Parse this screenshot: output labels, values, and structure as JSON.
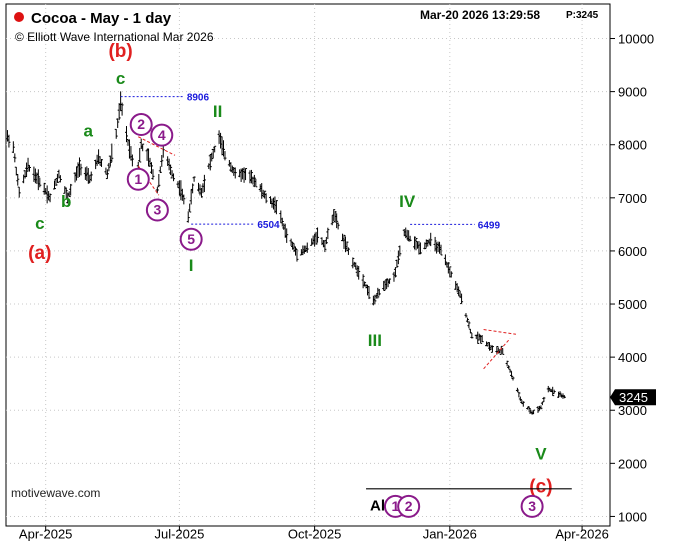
{
  "header": {
    "title": "Cocoa - May - 1 day",
    "copyright": "© Elliott Wave International Mar 2026",
    "timestamp": "Mar-20 2026  13:29:58",
    "price_tag": "P:3245",
    "watermark": "motivewave.com",
    "title_dot_color": "#dd1111"
  },
  "chart_data": {
    "type": "ohlc",
    "xlabel": "",
    "ylabel": "",
    "ylim": [
      820,
      10650
    ],
    "x_range": [
      "2025-03-05",
      "2026-04-20"
    ],
    "y_ticks": [
      1000,
      2000,
      3000,
      4000,
      5000,
      6000,
      7000,
      8000,
      9000,
      10000
    ],
    "x_ticks": [
      {
        "label": "Apr-2025",
        "date": "2025-04-01"
      },
      {
        "label": "Jul-2025",
        "date": "2025-07-01"
      },
      {
        "label": "Oct-2025",
        "date": "2025-10-01"
      },
      {
        "label": "Jan-2026",
        "date": "2026-01-01"
      },
      {
        "label": "Apr-2026",
        "date": "2026-04-01"
      }
    ],
    "price_anchors": [
      [
        "2025-03-06",
        8150
      ],
      [
        "2025-03-10",
        7950
      ],
      [
        "2025-03-14",
        7100
      ],
      [
        "2025-03-20",
        7600
      ],
      [
        "2025-03-28",
        7300
      ],
      [
        "2025-04-04",
        7000
      ],
      [
        "2025-04-10",
        7450
      ],
      [
        "2025-04-16",
        7000
      ],
      [
        "2025-04-24",
        7600
      ],
      [
        "2025-05-01",
        7350
      ],
      [
        "2025-05-07",
        7750
      ],
      [
        "2025-05-13",
        7450
      ],
      [
        "2025-05-19",
        8200
      ],
      [
        "2025-05-22",
        8800
      ],
      [
        "2025-05-27",
        8050
      ],
      [
        "2025-06-02",
        7400
      ],
      [
        "2025-06-05",
        8000
      ],
      [
        "2025-06-10",
        7750
      ],
      [
        "2025-06-16",
        7150
      ],
      [
        "2025-06-20",
        7900
      ],
      [
        "2025-06-26",
        7450
      ],
      [
        "2025-07-02",
        7150
      ],
      [
        "2025-07-07",
        6650
      ],
      [
        "2025-07-11",
        7350
      ],
      [
        "2025-07-16",
        7100
      ],
      [
        "2025-07-21",
        7600
      ],
      [
        "2025-07-28",
        8150
      ],
      [
        "2025-08-01",
        7800
      ],
      [
        "2025-08-08",
        7450
      ],
      [
        "2025-08-15",
        7450
      ],
      [
        "2025-08-22",
        7300
      ],
      [
        "2025-08-29",
        7000
      ],
      [
        "2025-09-05",
        6850
      ],
      [
        "2025-09-12",
        6300
      ],
      [
        "2025-09-19",
        5950
      ],
      [
        "2025-09-26",
        6050
      ],
      [
        "2025-10-03",
        6300
      ],
      [
        "2025-10-08",
        6100
      ],
      [
        "2025-10-14",
        6700
      ],
      [
        "2025-10-20",
        6250
      ],
      [
        "2025-10-27",
        5800
      ],
      [
        "2025-11-03",
        5450
      ],
      [
        "2025-11-10",
        5050
      ],
      [
        "2025-11-17",
        5350
      ],
      [
        "2025-11-24",
        5500
      ],
      [
        "2025-12-01",
        6350
      ],
      [
        "2025-12-08",
        6150
      ],
      [
        "2025-12-12",
        6050
      ],
      [
        "2025-12-19",
        6200
      ],
      [
        "2025-12-26",
        6000
      ],
      [
        "2026-01-02",
        5550
      ],
      [
        "2026-01-09",
        5100
      ],
      [
        "2026-01-16",
        4400
      ],
      [
        "2026-01-23",
        4350
      ],
      [
        "2026-01-30",
        4150
      ],
      [
        "2026-02-06",
        4100
      ],
      [
        "2026-02-13",
        3600
      ],
      [
        "2026-02-19",
        3150
      ],
      [
        "2026-02-26",
        2950
      ],
      [
        "2026-03-04",
        3050
      ],
      [
        "2026-03-09",
        3400
      ],
      [
        "2026-03-13",
        3350
      ],
      [
        "2026-03-20",
        3245
      ]
    ],
    "price_marker": {
      "value": "3245"
    },
    "annotations": [
      {
        "text": "(b)",
        "date": "2025-05-22",
        "price": 9750,
        "color": "#e02020",
        "size": "large"
      },
      {
        "text": "c",
        "date": "2025-05-22",
        "price": 9230,
        "color": "#1a8a1a",
        "size": "medium"
      },
      {
        "text": "a",
        "date": "2025-04-30",
        "price": 8240,
        "color": "#1a8a1a",
        "size": "medium"
      },
      {
        "text": "b",
        "date": "2025-04-15",
        "price": 6910,
        "color": "#1a8a1a",
        "size": "medium"
      },
      {
        "text": "c",
        "date": "2025-03-28",
        "price": 6500,
        "color": "#1a8a1a",
        "size": "medium"
      },
      {
        "text": "(a)",
        "date": "2025-03-28",
        "price": 5940,
        "color": "#e02020",
        "size": "large"
      },
      {
        "text": "II",
        "date": "2025-07-27",
        "price": 8610,
        "color": "#1a8a1a",
        "size": "medium"
      },
      {
        "text": "I",
        "date": "2025-07-09",
        "price": 5710,
        "color": "#1a8a1a",
        "size": "medium"
      },
      {
        "text": "IV",
        "date": "2025-12-03",
        "price": 6910,
        "color": "#1a8a1a",
        "size": "medium"
      },
      {
        "text": "III",
        "date": "2025-11-11",
        "price": 4290,
        "color": "#1a8a1a",
        "size": "medium"
      },
      {
        "text": "V",
        "date": "2026-03-04",
        "price": 2160,
        "color": "#1a8a1a",
        "size": "medium"
      },
      {
        "text": "(c)",
        "date": "2026-03-04",
        "price": 1550,
        "color": "#e02020",
        "size": "large"
      }
    ],
    "circled_labels": [
      {
        "text": "2",
        "date": "2025-06-05",
        "price": 8380
      },
      {
        "text": "4",
        "date": "2025-06-19",
        "price": 8180
      },
      {
        "text": "1",
        "date": "2025-06-03",
        "price": 7350
      },
      {
        "text": "3",
        "date": "2025-06-16",
        "price": 6770
      },
      {
        "text": "5",
        "date": "2025-07-09",
        "price": 6220
      }
    ],
    "reference_lines": [
      {
        "label": "8906",
        "value": 8906,
        "from": "2025-05-22",
        "to": "2025-07-04"
      },
      {
        "label": "6504",
        "value": 6504,
        "from": "2025-07-09",
        "to": "2025-08-21"
      },
      {
        "label": "6499",
        "value": 6499,
        "from": "2025-12-05",
        "to": "2026-01-18"
      }
    ],
    "red_trendlines": [
      {
        "from": [
          "2025-06-03",
          8150
        ],
        "to": [
          "2025-06-28",
          7800
        ]
      },
      {
        "from": [
          "2025-06-03",
          7600
        ],
        "to": [
          "2025-06-17",
          7050
        ]
      },
      {
        "from": [
          "2026-01-24",
          4520
        ],
        "to": [
          "2026-02-15",
          4430
        ]
      },
      {
        "from": [
          "2026-01-24",
          3780
        ],
        "to": [
          "2026-02-11",
          4350
        ]
      }
    ],
    "alt_count": {
      "label": "Alt:",
      "line": {
        "from": "2025-11-05",
        "to": "2026-03-25",
        "price": 1520
      },
      "circles": [
        {
          "text": "1",
          "date": "2025-11-25",
          "price": 1190
        },
        {
          "text": "2",
          "date": "2025-12-04",
          "price": 1190
        },
        {
          "text": "3",
          "date": "2026-02-26",
          "price": 1190
        }
      ]
    },
    "colors": {
      "wave_green": "#1a8a1a",
      "wave_red": "#e02020",
      "circle_purple": "#8a1a8a",
      "level_blue": "#1a1adc",
      "bar": "#000000"
    }
  }
}
